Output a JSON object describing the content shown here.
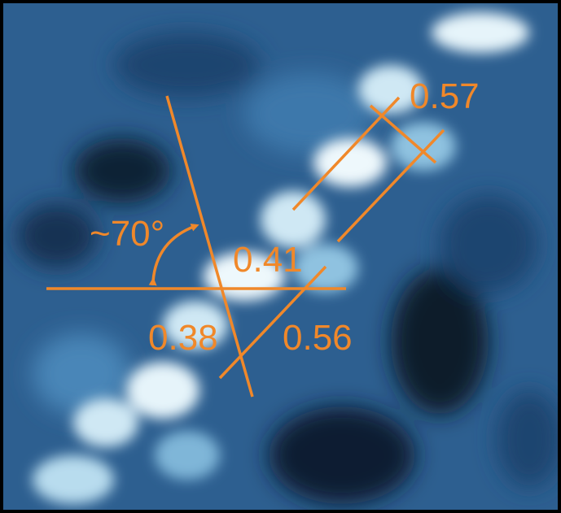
{
  "image": {
    "annotations": [
      {
        "label": "0.57"
      },
      {
        "label": "~70°"
      },
      {
        "label": "0.41"
      },
      {
        "label": "0.38"
      },
      {
        "label": "0.56"
      }
    ]
  }
}
